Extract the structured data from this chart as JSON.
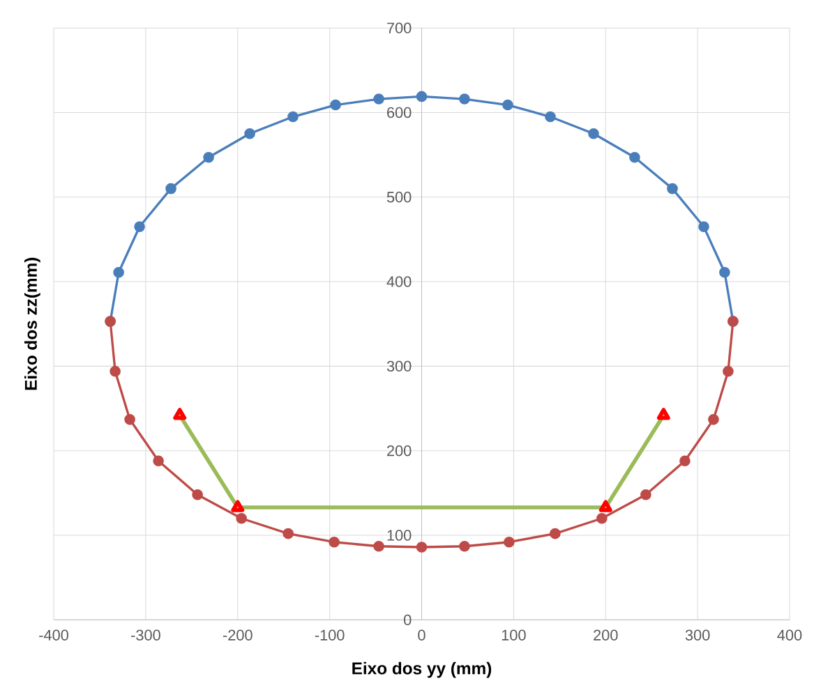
{
  "chart_data": {
    "type": "line",
    "xlabel": "Eixo dos yy (mm)",
    "ylabel": "Eixo dos zz(mm)",
    "xlim": [
      -400,
      400
    ],
    "ylim": [
      0,
      700
    ],
    "xticks": [
      -400,
      -300,
      -200,
      -100,
      0,
      100,
      200,
      300,
      400
    ],
    "yticks": [
      0,
      100,
      200,
      300,
      400,
      500,
      600,
      700
    ],
    "grid": true,
    "line_style": "solid",
    "series": [
      {
        "color": "#4a7ebb",
        "marker": "circle",
        "x": [
          -338.5,
          -329.4,
          -306.7,
          -272.6,
          -231.6,
          -186.9,
          -139.9,
          -93.6,
          -46.6,
          0,
          46.6,
          93.6,
          139.9,
          186.9,
          231.6,
          272.6,
          306.7,
          329.4,
          338.5
        ],
        "values": [
          353,
          411,
          465,
          510,
          547,
          575,
          595,
          609,
          616,
          619,
          616,
          609,
          595,
          575,
          547,
          510,
          465,
          411,
          353
        ]
      },
      {
        "color": "#be4b48",
        "marker": "circle",
        "x": [
          -338.5,
          -333.2,
          -317.3,
          -286.2,
          -243.7,
          -195.9,
          -145.1,
          -95.1,
          -46.6,
          0,
          46.6,
          95.1,
          145.1,
          195.9,
          243.7,
          286.2,
          317.3,
          333.2,
          338.5
        ],
        "values": [
          353,
          294,
          237,
          188,
          148,
          120,
          102,
          92,
          87,
          86,
          87,
          92,
          102,
          120,
          148,
          188,
          237,
          294,
          353
        ]
      },
      {
        "color": "#9bbb59",
        "marker": "triangle",
        "x": [
          -263,
          -200,
          200,
          263
        ],
        "values": [
          242,
          133,
          133,
          242
        ]
      }
    ]
  }
}
